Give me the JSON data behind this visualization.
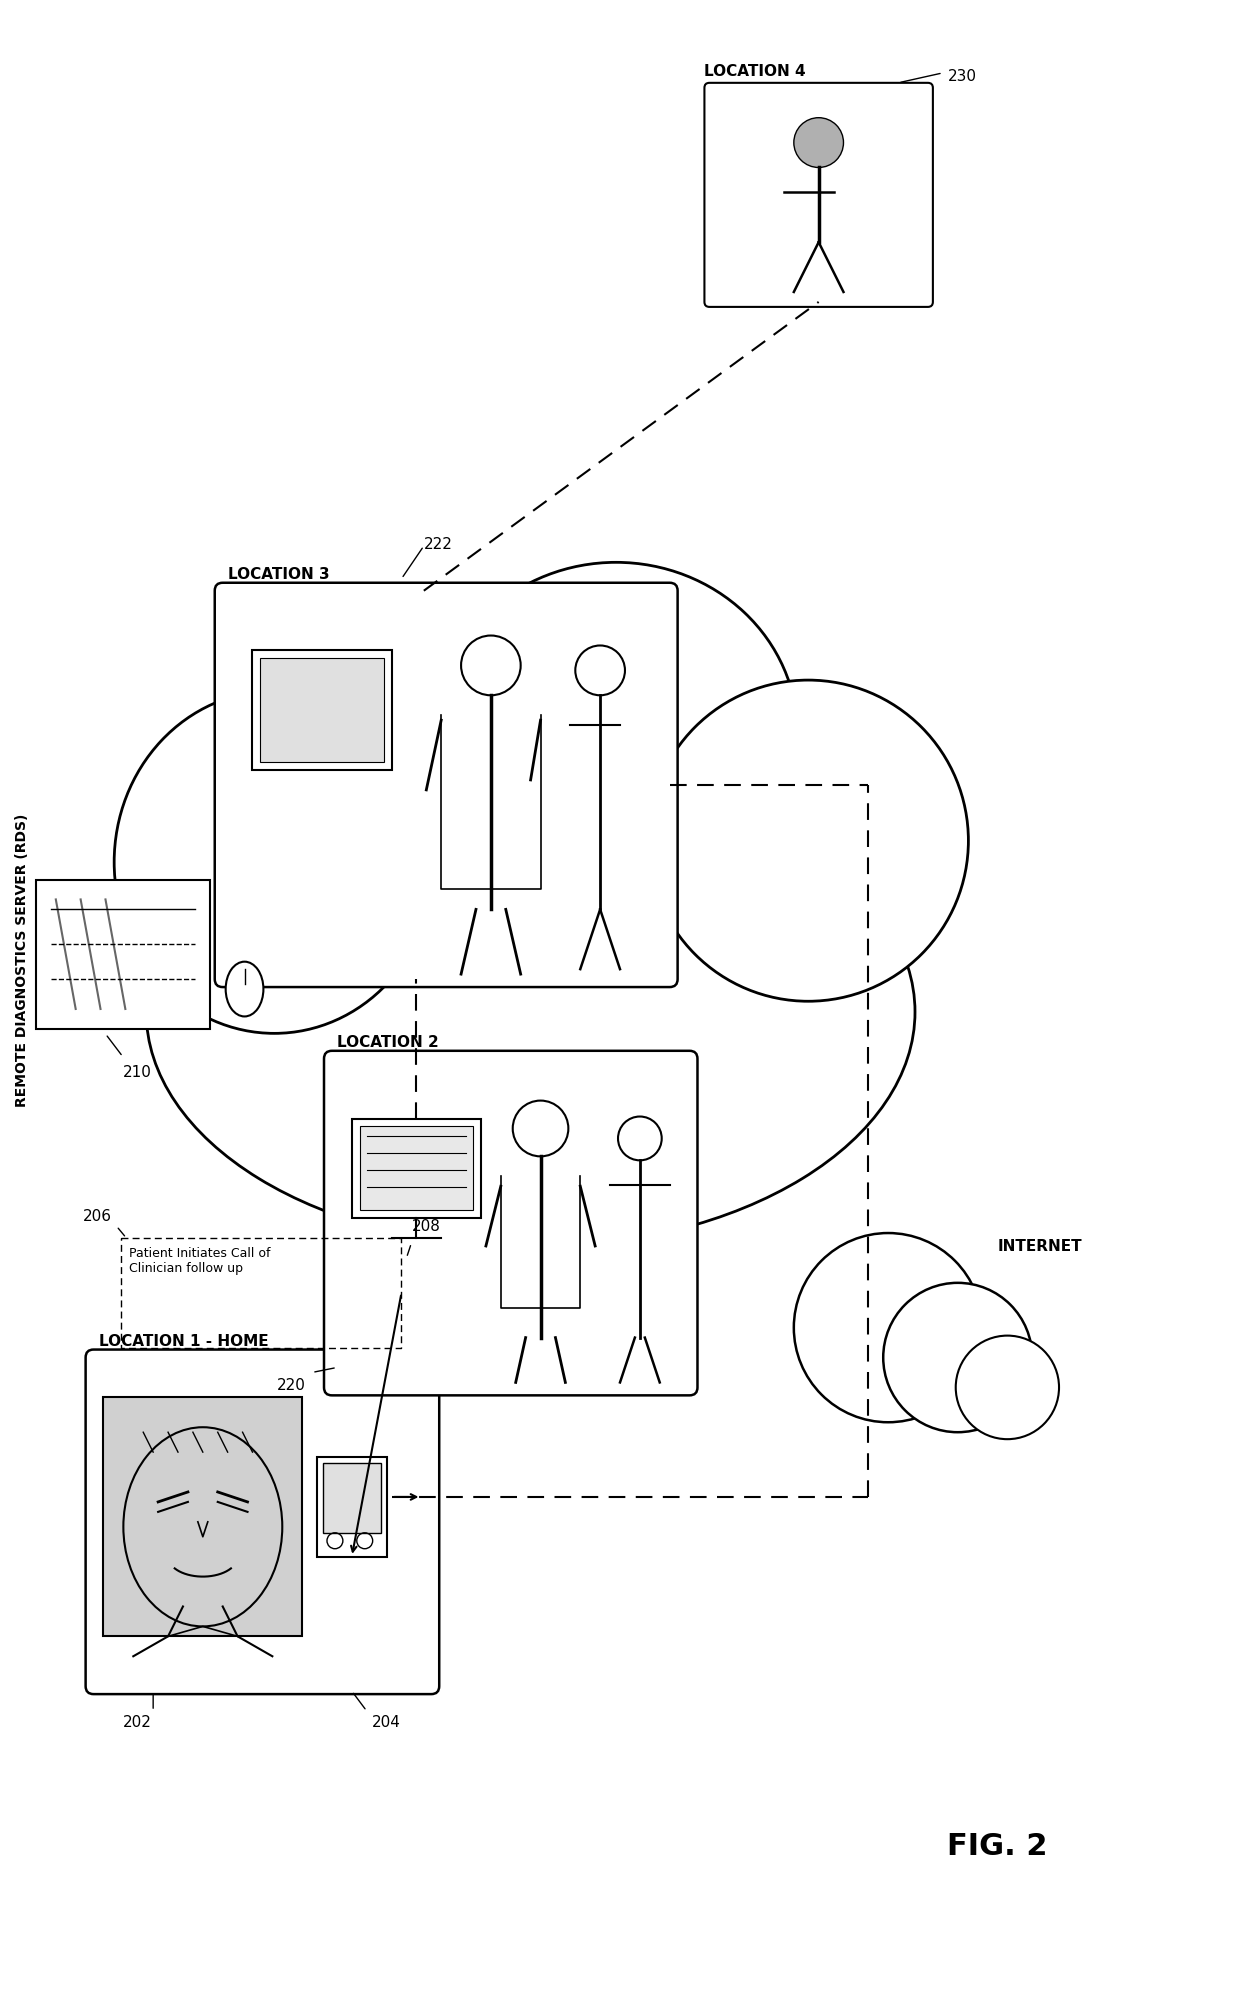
{
  "background_color": "#ffffff",
  "fig_width": 12.4,
  "fig_height": 20.06,
  "rds_label": "REMOTE DIAGNOSTICS SERVER (RDS)",
  "internet_label": "INTERNET",
  "location1_label": "LOCATION 1 - HOME",
  "location2_label": "LOCATION 2",
  "location3_label": "LOCATION 3",
  "location4_label": "LOCATION 4",
  "ref_210": "210",
  "ref_202": "202",
  "ref_204": "204",
  "ref_206": "206",
  "ref_208": "208",
  "ref_220": "220",
  "ref_222": "222",
  "ref_230": "230",
  "annotation_text": "Patient Initiates Call of\nClinician follow up",
  "fig_label": "FIG. 2"
}
